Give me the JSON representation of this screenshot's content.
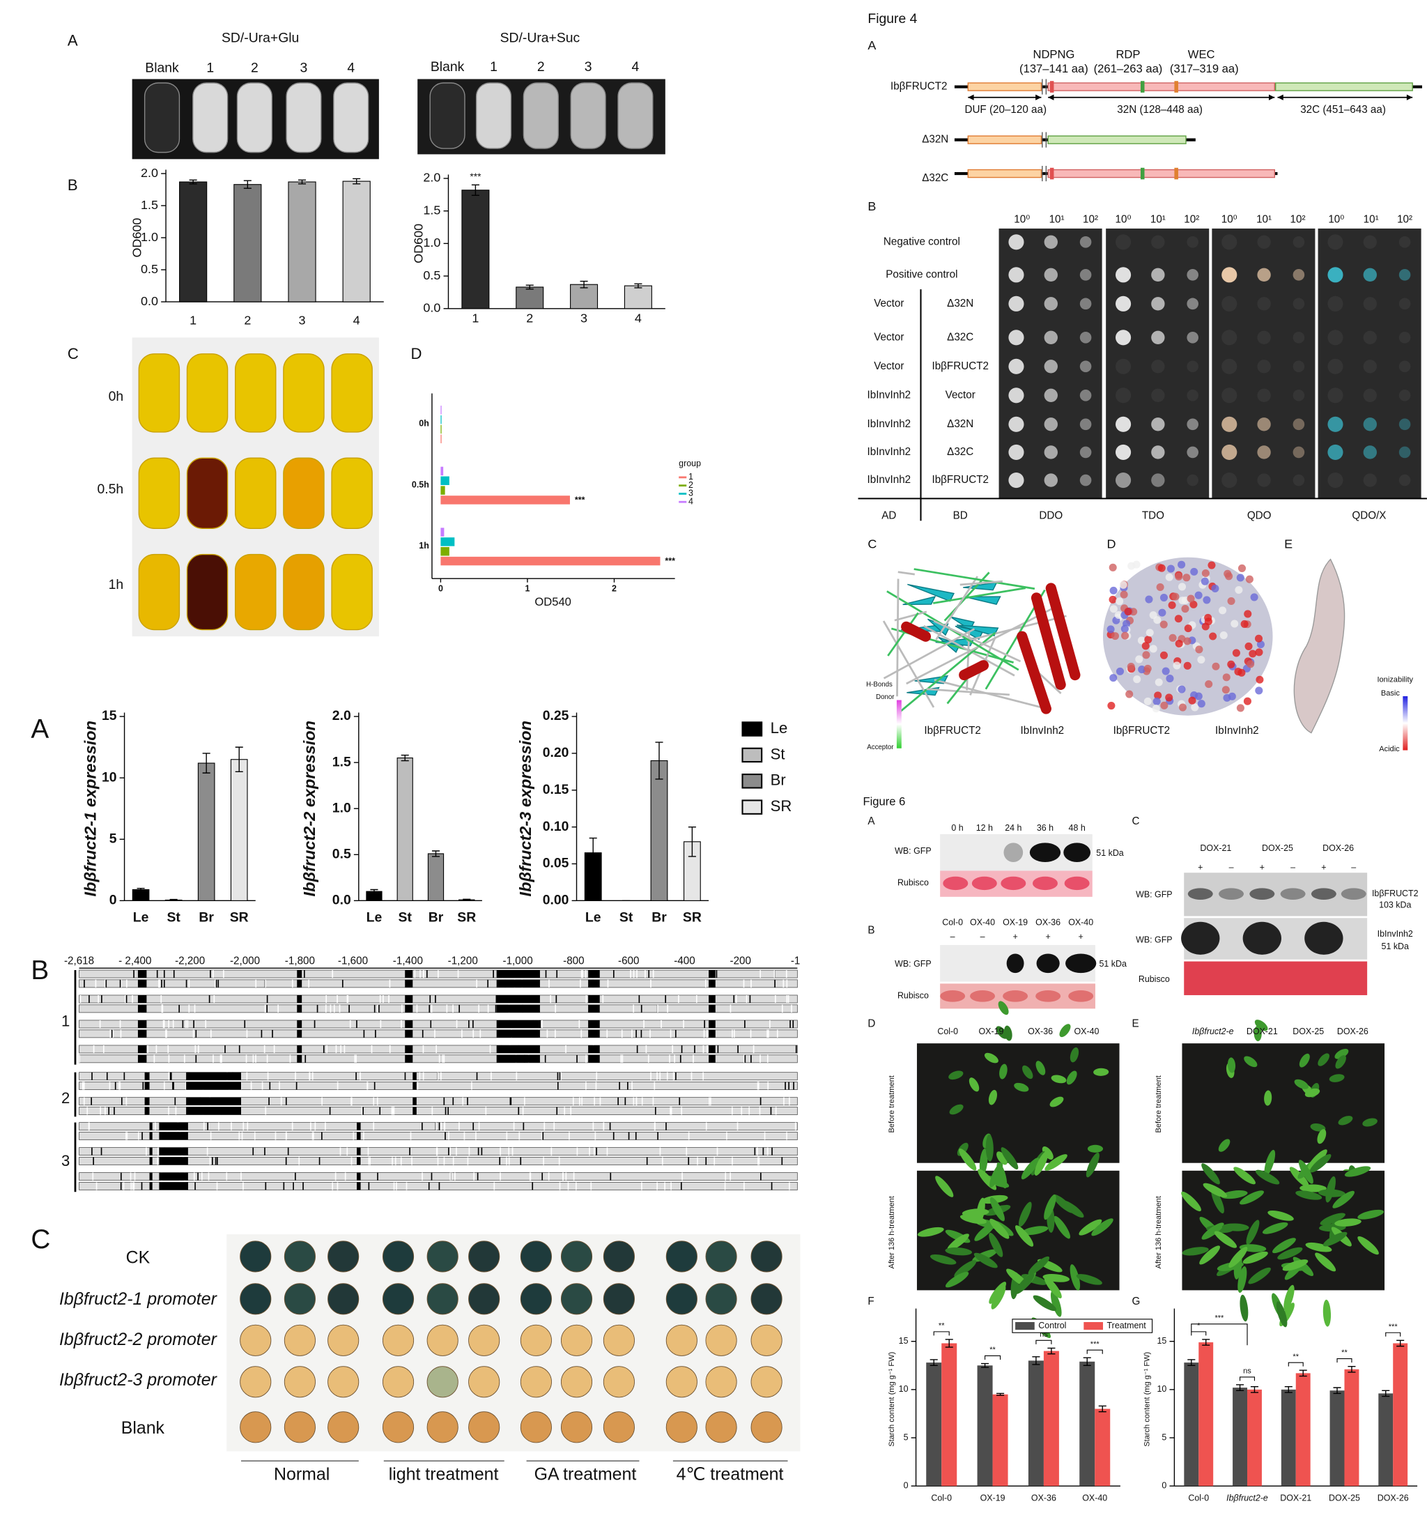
{
  "chart_data": [
    {
      "type": "bar",
      "categories": [
        "1",
        "2",
        "3",
        "4"
      ],
      "values": [
        1.87,
        1.83,
        1.87,
        1.88
      ],
      "errors": [
        0.03,
        0.06,
        0.03,
        0.04
      ],
      "colors": [
        "#2b2b2b",
        "#7a7a7a",
        "#a8a8a8",
        "#cfcfcf"
      ],
      "y_label": "OD600",
      "ylim": [
        0,
        2.0
      ],
      "yticks": [
        {
          "value": 0,
          "label": "0.0"
        },
        0.5,
        {
          "value": 1,
          "label": "1.0"
        },
        1.5,
        {
          "value": 2,
          "label": "2.0"
        }
      ]
    },
    {
      "type": "bar",
      "categories": [
        "1",
        "2",
        "3",
        "4"
      ],
      "values": [
        1.82,
        0.33,
        0.37,
        0.35
      ],
      "errors": [
        0.08,
        0.03,
        0.05,
        0.03
      ],
      "significance": [
        "***",
        null,
        null,
        null
      ],
      "colors": [
        "#2b2b2b",
        "#7a7a7a",
        "#a8a8a8",
        "#cfcfcf"
      ],
      "y_label": "OD600",
      "ylim": [
        0,
        2.0
      ],
      "yticks": [
        {
          "value": 0,
          "label": "0.0"
        },
        0.5,
        {
          "value": 1,
          "label": "1.0"
        },
        1.5,
        {
          "value": 2,
          "label": "2.0"
        }
      ]
    },
    {
      "type": "bar",
      "orientation": "horizontal",
      "categories": [
        "0h",
        "0.5h",
        "1h"
      ],
      "series": [
        {
          "name": "1",
          "color": "#f8766d",
          "values": [
            0.01,
            1.49,
            2.53
          ],
          "significance": [
            null,
            "***",
            "***"
          ]
        },
        {
          "name": "2",
          "color": "#7cae00",
          "values": [
            0.01,
            0.05,
            0.1
          ]
        },
        {
          "name": "3",
          "color": "#00bfc4",
          "values": [
            0.01,
            0.1,
            0.16
          ]
        },
        {
          "name": "4",
          "color": "#c77cff",
          "values": [
            0.01,
            0.03,
            0.04
          ]
        }
      ],
      "x_label": "OD540",
      "legend_title": "group",
      "xlim": [
        0,
        2.7
      ],
      "xticks": [
        0,
        1,
        2
      ]
    },
    {
      "type": "bar",
      "categories": [
        "Le",
        "St",
        "Br",
        "SR"
      ],
      "values": [
        0.9,
        0.05,
        11.2,
        11.5
      ],
      "errors": [
        0.1,
        0.05,
        0.8,
        1.0
      ],
      "colors": [
        "#000000",
        "#bdbdbd",
        "#8c8c8c",
        "#e6e6e6"
      ],
      "y_label": "Ibβfruct2-1 expression",
      "ylim": [
        0,
        15
      ],
      "yticks": [
        0,
        5,
        10,
        15
      ]
    },
    {
      "type": "bar",
      "categories": [
        "Le",
        "St",
        "Br",
        "SR"
      ],
      "values": [
        0.1,
        1.55,
        0.51,
        0.01
      ],
      "errors": [
        0.02,
        0.03,
        0.03,
        0.005
      ],
      "colors": [
        "#000000",
        "#bdbdbd",
        "#8c8c8c",
        "#e6e6e6"
      ],
      "y_label": "Ibβfruct2-2 expression",
      "ylim": [
        0,
        2.0
      ],
      "yticks": [
        {
          "value": 0,
          "label": "0.0"
        },
        0.5,
        {
          "value": 1,
          "label": "1.0"
        },
        1.5,
        {
          "value": 2,
          "label": "2.0"
        }
      ]
    },
    {
      "type": "bar",
      "categories": [
        "Le",
        "St",
        "Br",
        "SR"
      ],
      "values": [
        0.065,
        0,
        0.19,
        0.08
      ],
      "errors": [
        0.02,
        0,
        0.025,
        0.02
      ],
      "colors": [
        "#000000",
        "#bdbdbd",
        "#8c8c8c",
        "#e6e6e6"
      ],
      "y_label": "Ibβfruct2-3 expression",
      "ylim": [
        0,
        0.25
      ],
      "yticks": [
        {
          "value": 0,
          "label": "0.00"
        },
        0.05,
        {
          "value": 0.1,
          "label": "0.10"
        },
        0.15,
        {
          "value": 0.2,
          "label": "0.20"
        },
        0.25
      ],
      "legend": true
    },
    {
      "type": "bar",
      "categories": [
        "Col-0",
        "OX-19",
        "OX-36",
        "OX-40"
      ],
      "series": [
        {
          "name": "Control",
          "color": "#4d4d4d",
          "values": [
            12.8,
            12.5,
            13.0,
            12.9
          ],
          "errors": [
            0.3,
            0.2,
            0.4,
            0.4
          ]
        },
        {
          "name": "Treatment",
          "color": "#ef5350",
          "values": [
            14.8,
            9.5,
            14.0,
            8.0
          ],
          "errors": [
            0.4,
            0.1,
            0.3,
            0.3
          ]
        }
      ],
      "significance": [
        "**",
        "**",
        "ns",
        "***"
      ],
      "y_label": "Starch content (mg g⁻¹ FW)",
      "ylim": [
        0,
        18
      ],
      "yticks": [
        0,
        5,
        10,
        15
      ],
      "legend": true
    },
    {
      "type": "bar",
      "categories": [
        "Col-0",
        "Ibβfruct2-e",
        "DOX-21",
        "DOX-25",
        "DOX-26"
      ],
      "series": [
        {
          "name": "Control",
          "color": "#4d4d4d",
          "values": [
            12.8,
            10.2,
            10.0,
            9.9,
            9.6
          ],
          "errors": [
            0.3,
            0.3,
            0.3,
            0.3,
            0.3
          ]
        },
        {
          "name": "Treatment",
          "color": "#ef5350",
          "values": [
            14.9,
            10.0,
            11.7,
            12.1,
            14.8
          ],
          "errors": [
            0.3,
            0.3,
            0.3,
            0.3,
            0.3
          ]
        }
      ],
      "significance": [
        "*",
        "ns",
        "**",
        "**",
        "***"
      ],
      "cross_significance": "***",
      "y_label": "Starch content (mg g⁻¹ FW)",
      "ylim": [
        0,
        18
      ],
      "yticks": [
        0,
        5,
        10,
        15
      ],
      "legend": false
    }
  ],
  "figure_texts": {
    "top_a": "A",
    "title_glu": "SD/-Ura+Glu",
    "title_suc": "SD/-Ura+Suc",
    "tube_blank": "Blank",
    "tube_1": "1",
    "tube_2": "2",
    "tube_3": "3",
    "tube_4": "4",
    "top_b": "B",
    "top_c": "C",
    "top_d": "D",
    "time_0": "0h",
    "time_05": "0.5h",
    "time_1": "1h",
    "fig4": "Figure 4",
    "fig4_a": "A",
    "ndpng": "NDPNG",
    "ndpng_range": "(137–141 aa)",
    "rdp": "RDP",
    "rdp_range": "(261–263 aa)",
    "wec": "WEC",
    "wec_range": "(317–319 aa)",
    "construct_full": "IbβFRUCT2",
    "duf": "DUF (20–120 aa)",
    "n32": "32N (128–448 aa)",
    "c32": "32C (451–643 aa)",
    "construct_dn": "Δ32N",
    "construct_dc": "Δ32C",
    "fig4_b": "B",
    "dil_0": "10⁰",
    "dil_1": "10¹",
    "dil_2": "10²",
    "neg": "Negative control",
    "pos": "Positive control",
    "vector": "Vector",
    "invinh": "IbInvInh2",
    "bd_dn": "Δ32N",
    "bd_dc": "Δ32C",
    "bd_full": "IbβFRUCT2",
    "ad": "AD",
    "bd": "BD",
    "ddo": "DDO",
    "tdo": "TDO",
    "qdo": "QDO",
    "qdox": "QDO/X",
    "fig4_c": "C",
    "fig4_d": "D",
    "fig4_e": "E",
    "hbonds": "H-Bonds",
    "donor": "Donor",
    "acceptor": "Acceptor",
    "c_fruct": "IbβFRUCT2",
    "c_inh": "IbInvInh2",
    "d_fruct": "IbβFRUCT2",
    "d_inh": "IbInvInh2",
    "ioniz": "Ionizability",
    "basic": "Basic",
    "acidic": "Acidic",
    "fig6": "Figure 6",
    "fig6_a": "A",
    "fig6_c": "C",
    "h0": "0 h",
    "h12": "12 h",
    "h24": "24 h",
    "h36": "36 h",
    "h48": "48 h",
    "wb_a": "WB: GFP",
    "kda_a": "51 kDa",
    "rub_a": "Rubisco",
    "fig6_b": "B",
    "b_col": "Col-0",
    "b_ox40a": "OX-40",
    "b_ox19": "OX-19",
    "b_ox36": "OX-36",
    "b_ox40": "OX-40",
    "minus": "–",
    "plus": "+",
    "wb_b": "WB: GFP",
    "kda_b": "51 kDa",
    "rub_b": "Rubisco",
    "c_dox21": "DOX-21",
    "c_dox25": "DOX-25",
    "c_dox26": "DOX-26",
    "wb_c1": "WB: GFP",
    "c_fruct_band": "IbβFRUCT2",
    "c_103": "103 kDa",
    "wb_c2": "WB: GFP",
    "c_inh_band": "IbInvInh2",
    "c_51": "51 kDa",
    "rub_c": "Rubisco",
    "fig6_d": "D",
    "fig6_e": "E",
    "d_col": "Col-0",
    "d_ox19": "OX-19",
    "d_ox36": "OX-36",
    "d_ox40": "OX-40",
    "e_mut": "Ibβfruct2-e",
    "e_dox21": "DOX-21",
    "e_dox25": "DOX-25",
    "e_dox26": "DOX-26",
    "before": "Before treatment",
    "after": "After 136 h-treatment",
    "fig6_f": "F",
    "fig6_g": "G",
    "bot_a": "A",
    "bot_b": "B",
    "ruler": [
      "-2,618",
      "- 2,400",
      "-2,200",
      "-2,000",
      "-1,800",
      "-1,600",
      "-1,400",
      "-1,200",
      "-1,000",
      "-800",
      "-600",
      "-400",
      "-200",
      "-1"
    ],
    "group_1": "1",
    "group_2": "2",
    "group_3": "3",
    "bot_c": "C",
    "row_ck": "CK",
    "row_p1": "Ibβfruct2-1 promoter",
    "row_p2": "Ibβfruct2-2 promoter",
    "row_p3": "Ibβfruct2-3 promoter",
    "row_blank": "Blank",
    "cond_normal": "Normal",
    "cond_light": "light treatment",
    "cond_ga": "GA treatment",
    "cond_cold": "4℃ treatment"
  }
}
